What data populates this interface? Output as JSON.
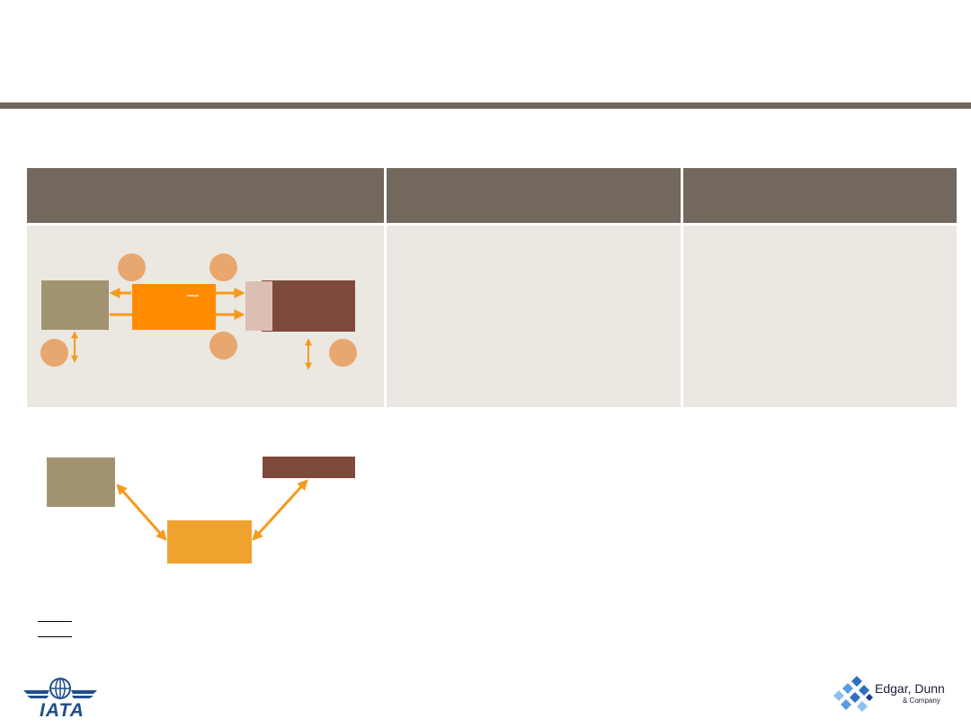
{
  "logos": {
    "left": {
      "name": "IATA",
      "text": "IATA"
    },
    "right": {
      "name": "Edgar, Dunn & Company",
      "text": "Edgar, Dunn",
      "subtext": "& Company"
    }
  },
  "colors": {
    "header_bar": "#73665c",
    "table_header": "#73685e",
    "table_cell": "#ebe8e2",
    "khaki_box": "#a39471",
    "orange_box": "#ff8c00",
    "brown_box": "#7d4a3b",
    "pink_box": "#dcbfb3",
    "circle": "#e8a76e",
    "light_orange_box": "#f0a22e",
    "arrow": "#f59a1f"
  }
}
